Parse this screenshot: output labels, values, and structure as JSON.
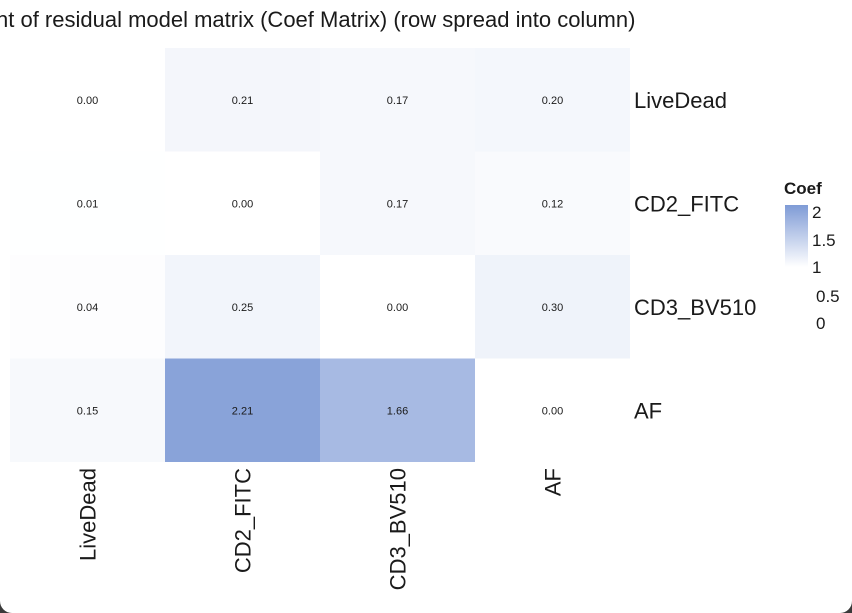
{
  "chart_data": {
    "type": "heatmap",
    "title": "nt of residual model matrix (Coef Matrix) (row spread into column)",
    "rows": [
      "LiveDead",
      "CD2_FITC",
      "CD3_BV510",
      "AF"
    ],
    "columns": [
      "LiveDead",
      "CD2_FITC",
      "CD3_BV510",
      "AF"
    ],
    "values": [
      [
        0.0,
        0.21,
        0.17,
        0.2
      ],
      [
        0.01,
        0.0,
        0.17,
        0.12
      ],
      [
        0.04,
        0.25,
        0.0,
        0.3
      ],
      [
        0.15,
        2.21,
        1.66,
        0.0
      ]
    ],
    "legend": {
      "title": "Coef",
      "ticks": [
        "2",
        "1.5",
        "1",
        "0.5",
        "0"
      ],
      "placement": "right"
    },
    "colors": {
      "high": "#7f9bd6",
      "low": "#ffffff"
    }
  }
}
